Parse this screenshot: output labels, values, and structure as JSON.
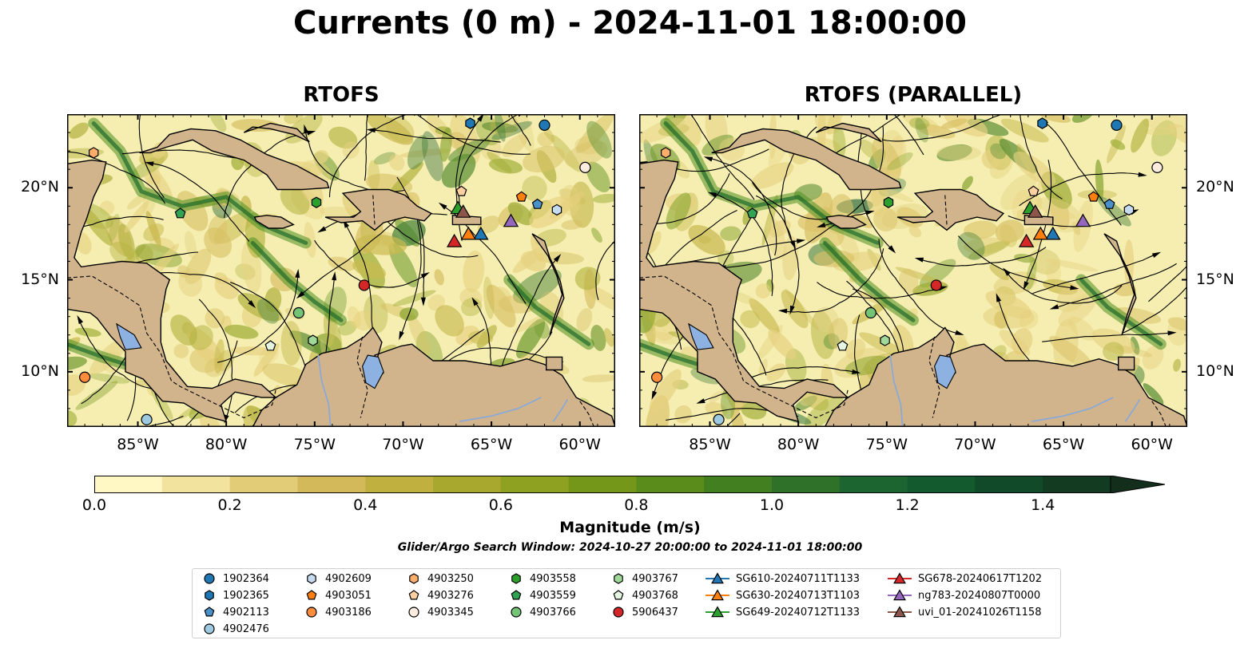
{
  "title": "Currents (0 m) - 2024-11-01 18:00:00",
  "panels": [
    {
      "id": "left",
      "title": "RTOFS"
    },
    {
      "id": "right",
      "title": "RTOFS (PARALLEL)"
    }
  ],
  "map": {
    "lon_range": [
      -89,
      -58
    ],
    "lat_range": [
      7,
      24
    ],
    "lon_ticks": [
      {
        "value": -85,
        "label": "85°W"
      },
      {
        "value": -80,
        "label": "80°W"
      },
      {
        "value": -75,
        "label": "75°W"
      },
      {
        "value": -70,
        "label": "70°W"
      },
      {
        "value": -65,
        "label": "65°W"
      },
      {
        "value": -60,
        "label": "60°W"
      }
    ],
    "lat_ticks": [
      {
        "value": 20,
        "label": "20°N"
      },
      {
        "value": 15,
        "label": "15°N"
      },
      {
        "value": 10,
        "label": "10°N"
      }
    ],
    "colors": {
      "ocean_low": "#f5eeb0",
      "ocean_mid": "#9bb52a",
      "ocean_high": "#1f6b2a",
      "land": "#d2b48c",
      "lake": "#8db1e0"
    }
  },
  "colorbar": {
    "title": "Magnitude (m/s)",
    "min": 0.0,
    "max": 1.5,
    "ticks": [
      "0.0",
      "0.2",
      "0.4",
      "0.6",
      "0.8",
      "1.0",
      "1.2",
      "1.4"
    ],
    "colors": [
      "#fff8c5",
      "#f2e49f",
      "#e3cc77",
      "#d4b95a",
      "#c0b03f",
      "#a8a82e",
      "#8ea120",
      "#74971a",
      "#5a8c1b",
      "#427f20",
      "#2f7128",
      "#1d6530",
      "#135a2e",
      "#104a28",
      "#123b22",
      "#142e1c"
    ]
  },
  "search_window": "Glider/Argo Search Window: 2024-10-27 20:00:00 to 2024-11-01 18:00:00",
  "legend": [
    {
      "label": "1902364",
      "marker": "circle",
      "color": "#1f77b4"
    },
    {
      "label": "1902365",
      "marker": "hexagon",
      "color": "#1f77b4"
    },
    {
      "label": "4902113",
      "marker": "pentagon",
      "color": "#4a90c9"
    },
    {
      "label": "4902476",
      "marker": "circle",
      "color": "#9ecae1"
    },
    {
      "label": "4902609",
      "marker": "hexagon",
      "color": "#c6dbef"
    },
    {
      "label": "4903051",
      "marker": "pentagon",
      "color": "#ff7f0e"
    },
    {
      "label": "4903186",
      "marker": "circle",
      "color": "#fd8d3c"
    },
    {
      "label": "4903250",
      "marker": "hexagon",
      "color": "#fdae6b"
    },
    {
      "label": "4903276",
      "marker": "pentagon",
      "color": "#fdd0a2"
    },
    {
      "label": "4903345",
      "marker": "circle",
      "color": "#feedde"
    },
    {
      "label": "4903558",
      "marker": "hexagon",
      "color": "#2ca02c"
    },
    {
      "label": "4903559",
      "marker": "pentagon",
      "color": "#31a354"
    },
    {
      "label": "4903766",
      "marker": "circle",
      "color": "#74c476"
    },
    {
      "label": "4903767",
      "marker": "hexagon",
      "color": "#a1d99b"
    },
    {
      "label": "4903768",
      "marker": "pentagon",
      "color": "#e5f5e0"
    },
    {
      "label": "5906437",
      "marker": "circle",
      "color": "#d62728"
    },
    {
      "label": "SG610-20240711T1133",
      "marker": "triangle",
      "color": "#1f77b4"
    },
    {
      "label": "SG630-20240713T1103",
      "marker": "triangle",
      "color": "#ff7f0e"
    },
    {
      "label": "SG649-20240712T1133",
      "marker": "triangle",
      "color": "#2ca02c"
    },
    {
      "label": "SG678-20240617T1202",
      "marker": "triangle",
      "color": "#d62728"
    },
    {
      "label": "ng783-20240807T0000",
      "marker": "triangle",
      "color": "#9467bd"
    },
    {
      "label": "uvi_01-20241026T1158",
      "marker": "triangle",
      "color": "#8c564b"
    }
  ],
  "observations": [
    {
      "id": "1902364",
      "lon": -62.0,
      "lat": 23.4
    },
    {
      "id": "1902365",
      "lon": -66.2,
      "lat": 23.5
    },
    {
      "id": "4902113",
      "lon": -62.4,
      "lat": 19.1
    },
    {
      "id": "4902476",
      "lon": -84.5,
      "lat": 7.4
    },
    {
      "id": "4902609",
      "lon": -61.3,
      "lat": 18.8
    },
    {
      "id": "4903051",
      "lon": -63.3,
      "lat": 19.5
    },
    {
      "id": "4903186",
      "lon": -88.0,
      "lat": 9.7
    },
    {
      "id": "4903250",
      "lon": -87.5,
      "lat": 21.9
    },
    {
      "id": "4903276",
      "lon": -66.7,
      "lat": 19.8
    },
    {
      "id": "4903345",
      "lon": -59.7,
      "lat": 21.1
    },
    {
      "id": "4903558",
      "lon": -74.9,
      "lat": 19.2
    },
    {
      "id": "4903559",
      "lon": -82.6,
      "lat": 18.6
    },
    {
      "id": "4903766",
      "lon": -75.9,
      "lat": 13.2
    },
    {
      "id": "4903767",
      "lon": -75.1,
      "lat": 11.7
    },
    {
      "id": "4903768",
      "lon": -77.5,
      "lat": 11.4
    },
    {
      "id": "5906437",
      "lon": -72.2,
      "lat": 14.7
    },
    {
      "id": "SG610-20240711T1133",
      "lon": -65.6,
      "lat": 17.5
    },
    {
      "id": "SG630-20240713T1103",
      "lon": -66.3,
      "lat": 17.5
    },
    {
      "id": "SG649-20240712T1133",
      "lon": -66.9,
      "lat": 18.9
    },
    {
      "id": "SG678-20240617T1202",
      "lon": -67.1,
      "lat": 17.1
    },
    {
      "id": "ng783-20240807T0000",
      "lon": -63.9,
      "lat": 18.2
    },
    {
      "id": "uvi_01-20241026T1158",
      "lon": -66.6,
      "lat": 18.7
    }
  ]
}
